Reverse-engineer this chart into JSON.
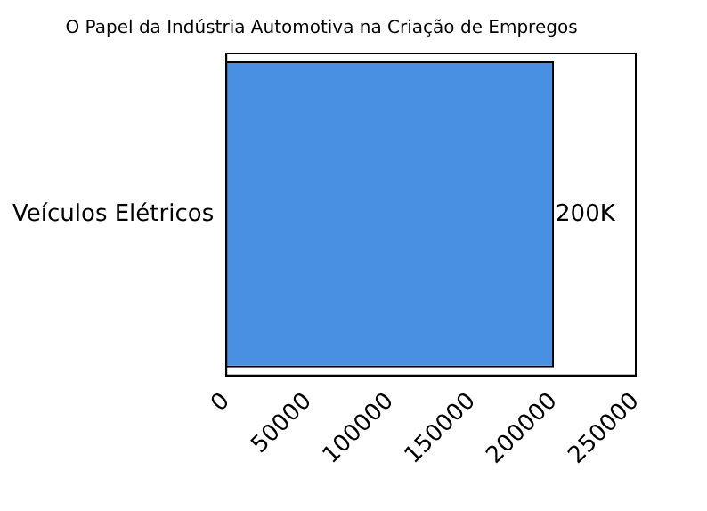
{
  "chart_data": {
    "type": "bar",
    "orientation": "horizontal",
    "title": "O Papel da Indústria Automotiva na Criação de Empregos",
    "categories": [
      "Veículos Elétricos"
    ],
    "values": [
      200000
    ],
    "value_labels": [
      "200K"
    ],
    "color": "#4a90e2",
    "xlim": [
      0,
      250000
    ],
    "xticks": [
      0,
      50000,
      100000,
      150000,
      200000,
      250000
    ],
    "grid": false,
    "legend": false
  }
}
